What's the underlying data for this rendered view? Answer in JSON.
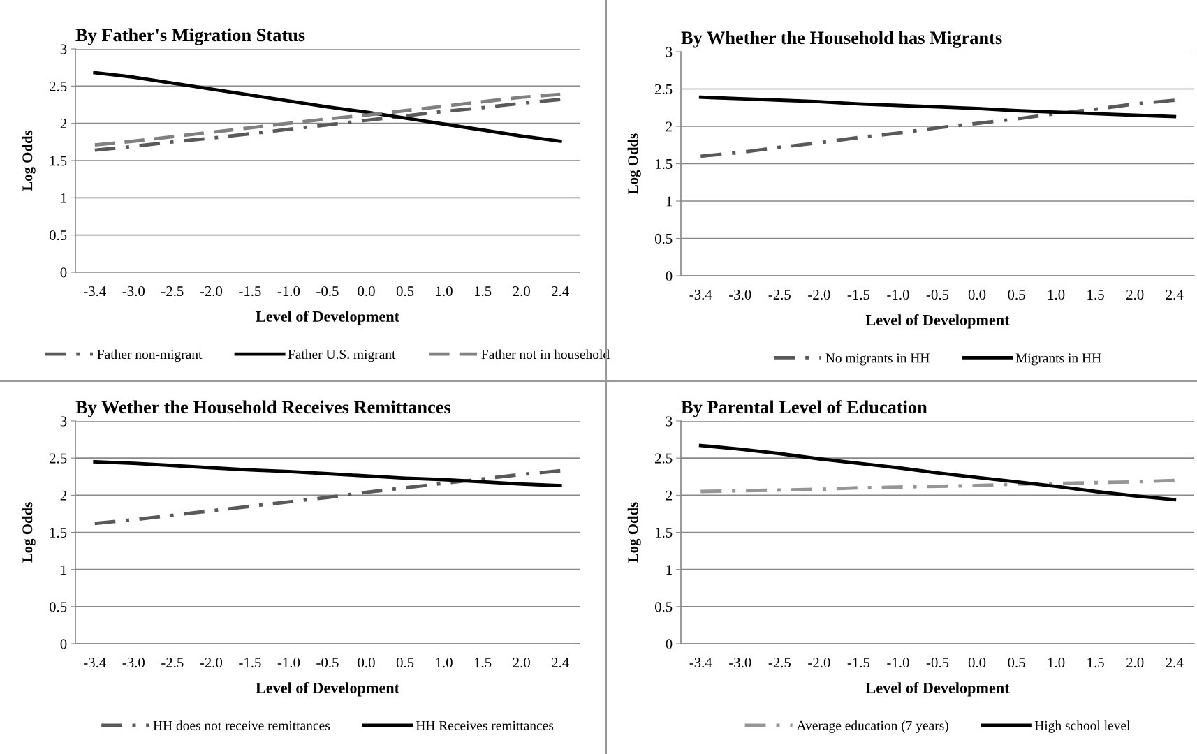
{
  "chart_data": [
    {
      "type": "line",
      "title": "By Father's Migration Status",
      "xlabel": "Level of Development",
      "ylabel": "Log Odds",
      "categories": [
        "-3.4",
        "-3.0",
        "-2.5",
        "-2.0",
        "-1.5",
        "-1.0",
        "-0.5",
        "0.0",
        "0.5",
        "1.0",
        "1.5",
        "2.0",
        "2.4"
      ],
      "ylim": [
        0,
        3
      ],
      "yticks": [
        0,
        0.5,
        1,
        1.5,
        2,
        2.5,
        3
      ],
      "grid": "y",
      "legend": "bottom",
      "series": [
        {
          "name": "Father non-migrant",
          "color": "#595959",
          "line_style": "dashdot",
          "values": [
            1.64,
            1.69,
            1.75,
            1.8,
            1.86,
            1.92,
            1.98,
            2.04,
            2.1,
            2.16,
            2.21,
            2.27,
            2.32
          ]
        },
        {
          "name": "Father U.S. migrant",
          "color": "#000000",
          "line_style": "solid",
          "values": [
            2.68,
            2.62,
            2.54,
            2.46,
            2.38,
            2.3,
            2.22,
            2.15,
            2.07,
            1.99,
            1.91,
            1.83,
            1.76
          ]
        },
        {
          "name": "Father not in household",
          "color": "#808080",
          "line_style": "dashed",
          "values": [
            1.71,
            1.76,
            1.82,
            1.88,
            1.94,
            2.0,
            2.06,
            2.11,
            2.17,
            2.23,
            2.29,
            2.35,
            2.39
          ]
        }
      ]
    },
    {
      "type": "line",
      "title": "By Whether the Household has Migrants",
      "xlabel": "Level of Development",
      "ylabel": "Log Odds",
      "categories": [
        "-3.4",
        "-3.0",
        "-2.5",
        "-2.0",
        "-1.5",
        "-1.0",
        "-0.5",
        "0.0",
        "0.5",
        "1.0",
        "1.5",
        "2.0",
        "2.4"
      ],
      "ylim": [
        0,
        3
      ],
      "yticks": [
        0,
        0.5,
        1,
        1.5,
        2,
        2.5,
        3
      ],
      "grid": "y",
      "legend": "bottom",
      "series": [
        {
          "name": "No migrants in HH",
          "color": "#595959",
          "line_style": "dashdot",
          "values": [
            1.6,
            1.65,
            1.72,
            1.78,
            1.85,
            1.91,
            1.98,
            2.04,
            2.1,
            2.17,
            2.23,
            2.3,
            2.35
          ]
        },
        {
          "name": "Migrants in HH",
          "color": "#000000",
          "line_style": "solid",
          "values": [
            2.39,
            2.37,
            2.35,
            2.33,
            2.3,
            2.28,
            2.26,
            2.24,
            2.21,
            2.19,
            2.17,
            2.15,
            2.13
          ]
        }
      ]
    },
    {
      "type": "line",
      "title": "By Wether the Household Receives Remittances",
      "xlabel": "Level of Development",
      "ylabel": "Log Odds",
      "categories": [
        "-3.4",
        "-3.0",
        "-2.5",
        "-2.0",
        "-1.5",
        "-1.0",
        "-0.5",
        "0.0",
        "0.5",
        "1.0",
        "1.5",
        "2.0",
        "2.4"
      ],
      "ylim": [
        0,
        3
      ],
      "yticks": [
        0,
        0.5,
        1,
        1.5,
        2,
        2.5,
        3
      ],
      "grid": "y",
      "legend": "bottom",
      "series": [
        {
          "name": "HH does not receive remittances",
          "color": "#595959",
          "line_style": "dashdot",
          "values": [
            1.62,
            1.67,
            1.73,
            1.79,
            1.85,
            1.91,
            1.97,
            2.04,
            2.1,
            2.16,
            2.22,
            2.28,
            2.33
          ]
        },
        {
          "name": "HH Receives remittances",
          "color": "#000000",
          "line_style": "solid",
          "values": [
            2.45,
            2.43,
            2.4,
            2.37,
            2.34,
            2.32,
            2.29,
            2.26,
            2.23,
            2.21,
            2.18,
            2.15,
            2.13
          ]
        }
      ]
    },
    {
      "type": "line",
      "title": "By Parental Level of Education",
      "xlabel": "Level of Development",
      "ylabel": "Log Odds",
      "categories": [
        "-3.4",
        "-3.0",
        "-2.5",
        "-2.0",
        "-1.5",
        "-1.0",
        "-0.5",
        "0.0",
        "0.5",
        "1.0",
        "1.5",
        "2.0",
        "2.4"
      ],
      "ylim": [
        0,
        3
      ],
      "yticks": [
        0,
        0.5,
        1,
        1.5,
        2,
        2.5,
        3
      ],
      "grid": "y",
      "legend": "bottom",
      "series": [
        {
          "name": "Average education (7 years)",
          "color": "#969696",
          "line_style": "dashdot",
          "values": [
            2.05,
            2.06,
            2.07,
            2.08,
            2.1,
            2.11,
            2.12,
            2.13,
            2.15,
            2.16,
            2.17,
            2.18,
            2.2
          ]
        },
        {
          "name": "High school level",
          "color": "#000000",
          "line_style": "solid",
          "values": [
            2.67,
            2.62,
            2.56,
            2.49,
            2.43,
            2.37,
            2.3,
            2.24,
            2.18,
            2.12,
            2.05,
            1.99,
            1.94
          ]
        }
      ]
    }
  ]
}
